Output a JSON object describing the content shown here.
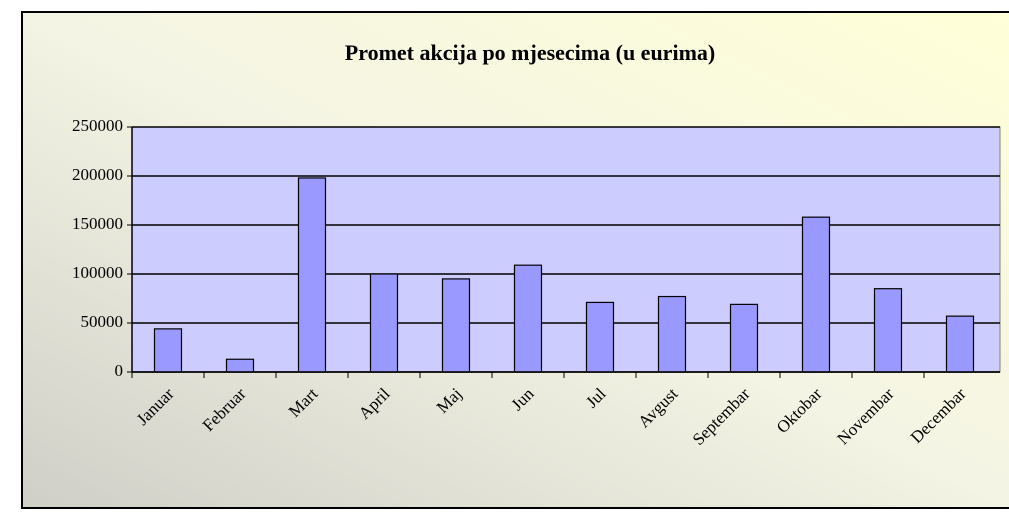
{
  "chart_data": {
    "type": "bar",
    "title": "Promet akcija po mjesecima (u eurima)",
    "categories": [
      "Januar",
      "Februar",
      "Mart",
      "April",
      "Maj",
      "Jun",
      "Jul",
      "Avgust",
      "Septembar",
      "Oktobar",
      "Novembar",
      "Decembar"
    ],
    "values": [
      44000,
      13000,
      198000,
      100000,
      95000,
      109000,
      71000,
      77000,
      69000,
      158000,
      85000,
      57000
    ],
    "color": "#9999ff",
    "ylim": [
      0,
      250000
    ],
    "yticks": [
      0,
      50000,
      100000,
      150000,
      200000,
      250000
    ],
    "grid": true
  }
}
